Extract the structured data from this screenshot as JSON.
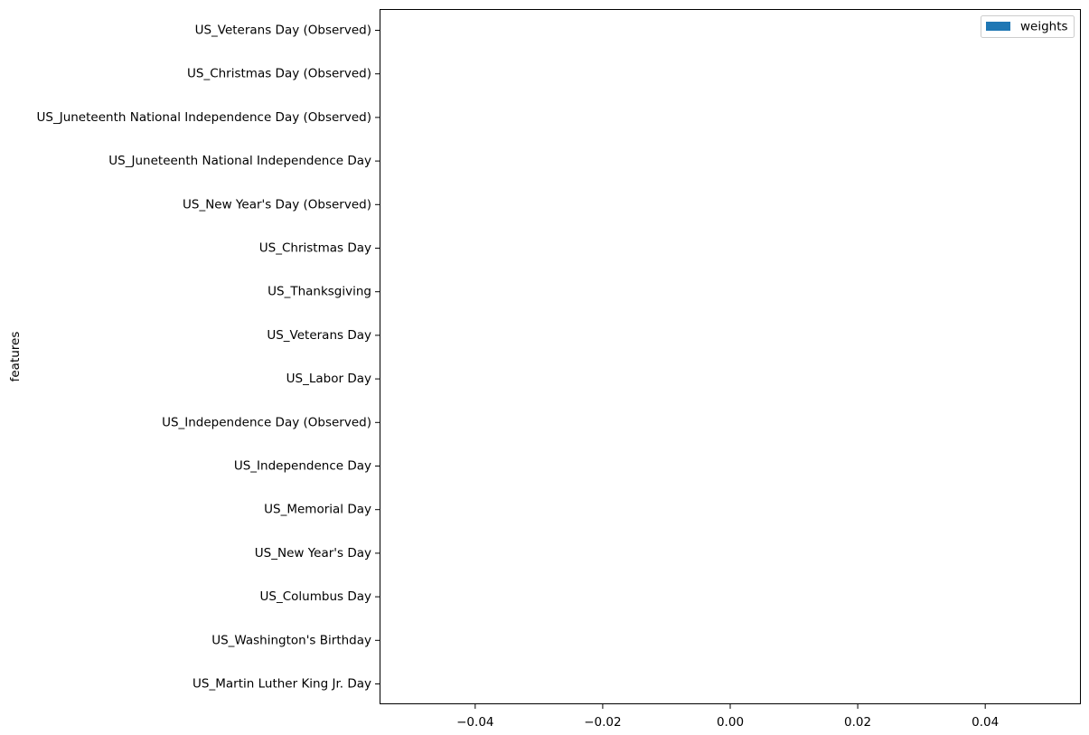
{
  "chart_data": {
    "type": "barh",
    "ylabel": "features",
    "xlabel": "",
    "categories": [
      "US_Martin Luther King Jr. Day",
      "US_Washington's Birthday",
      "US_Columbus Day",
      "US_New Year's Day",
      "US_Memorial Day",
      "US_Independence Day",
      "US_Independence Day (Observed)",
      "US_Labor Day",
      "US_Veterans Day",
      "US_Thanksgiving",
      "US_Christmas Day",
      "US_New Year's Day (Observed)",
      "US_Juneteenth National Independence Day",
      "US_Juneteenth National Independence Day (Observed)",
      "US_Christmas Day (Observed)",
      "US_Veterans Day (Observed)"
    ],
    "series": [
      {
        "name": "weights",
        "color": "#1f77b4",
        "values": [
          0,
          0,
          0,
          0,
          0,
          0,
          0,
          0,
          0,
          0,
          0,
          0,
          0,
          0,
          0,
          0
        ]
      }
    ],
    "xlim": [
      -0.055,
      0.055
    ],
    "xticks": [
      -0.04,
      -0.02,
      0.0,
      0.02,
      0.04
    ],
    "xtick_labels": [
      "−0.04",
      "−0.02",
      "0.00",
      "0.02",
      "0.04"
    ],
    "legend": {
      "position": "top-right",
      "entries": [
        "weights"
      ]
    },
    "grid": false
  }
}
